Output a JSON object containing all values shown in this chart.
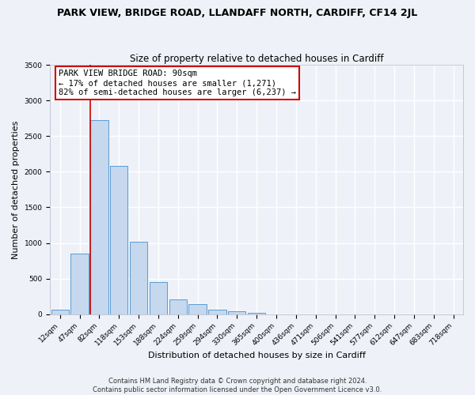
{
  "title": "PARK VIEW, BRIDGE ROAD, LLANDAFF NORTH, CARDIFF, CF14 2JL",
  "subtitle": "Size of property relative to detached houses in Cardiff",
  "xlabel": "Distribution of detached houses by size in Cardiff",
  "ylabel": "Number of detached properties",
  "bin_labels": [
    "12sqm",
    "47sqm",
    "82sqm",
    "118sqm",
    "153sqm",
    "188sqm",
    "224sqm",
    "259sqm",
    "294sqm",
    "330sqm",
    "365sqm",
    "400sqm",
    "436sqm",
    "471sqm",
    "506sqm",
    "541sqm",
    "577sqm",
    "612sqm",
    "647sqm",
    "683sqm",
    "718sqm"
  ],
  "bar_values": [
    60,
    850,
    2730,
    2080,
    1020,
    455,
    205,
    145,
    65,
    45,
    20,
    0,
    0,
    0,
    0,
    0,
    0,
    0,
    0,
    0,
    0
  ],
  "bar_color": "#c5d8ed",
  "bar_edge_color": "#5b9bd5",
  "vline_color": "#cc0000",
  "ylim": [
    0,
    3500
  ],
  "yticks": [
    0,
    500,
    1000,
    1500,
    2000,
    2500,
    3000,
    3500
  ],
  "annotation_title": "PARK VIEW BRIDGE ROAD: 90sqm",
  "annotation_line1": "← 17% of detached houses are smaller (1,271)",
  "annotation_line2": "82% of semi-detached houses are larger (6,237) →",
  "annotation_box_color": "#ffffff",
  "annotation_box_edge": "#cc0000",
  "footer1": "Contains HM Land Registry data © Crown copyright and database right 2024.",
  "footer2": "Contains public sector information licensed under the Open Government Licence v3.0.",
  "background_color": "#eef2f8",
  "grid_color": "#ffffff",
  "title_fontsize": 9,
  "subtitle_fontsize": 8.5,
  "tick_fontsize": 6.5,
  "axis_label_fontsize": 8,
  "annotation_fontsize": 7.5,
  "footer_fontsize": 6
}
